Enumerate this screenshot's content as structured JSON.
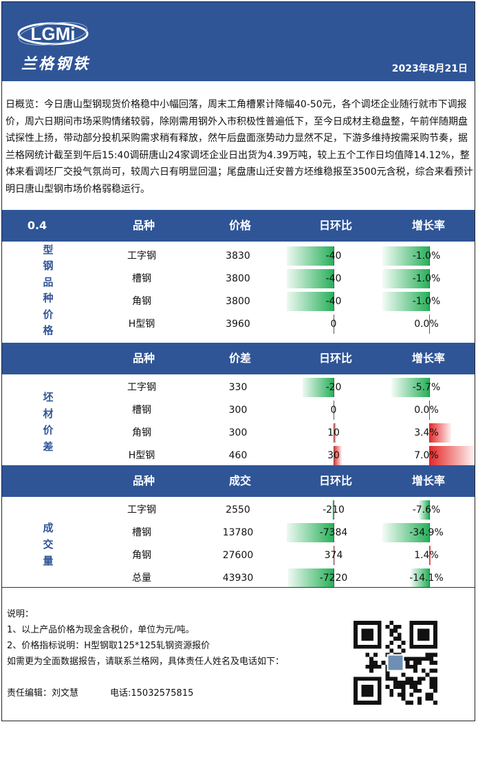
{
  "header": {
    "logo_text": "LGMi",
    "logo_name": "兰格钢铁",
    "date": "2023年8月21日"
  },
  "summary": "日概览：今日唐山型钢现货价格稳中小幅回落，周末工角槽累计降幅40-50元，各个调坯企业随行就市下调报价，周六日期间市场采购情绪较弱，除刚需用钢外入市积极性普遍低下，至今日成材主稳盘整，午前伴随期盘试探性上扬，带动部分投机采购需求稍有释放，然午后盘面涨势动力显然不足，下游多维持按需采购节奏，据兰格网统计截至到午后15:40调研唐山24家调坯企业日出货为4.39万吨，较上五个工作日均值降14.12%，整体来看调坯厂交投气氛尚可，较周六日有明显回温；尾盘唐山迁安普方坯维稳报至3500元含税，综合来看预计明日唐山型钢市场价格弱稳运行。",
  "sections": [
    {
      "band": {
        "c0": "0.4",
        "c1": "品种",
        "c2": "价格",
        "c3": "日环比",
        "c4": "增长率"
      },
      "label": [
        "型",
        "钢",
        "品",
        "种",
        "价",
        "格"
      ],
      "rows": [
        {
          "name": "工字钢",
          "value": "3830",
          "change": "-40",
          "change_num": -40,
          "rate": "-1.0%",
          "rate_num": -1.0
        },
        {
          "name": "槽钢",
          "value": "3800",
          "change": "-40",
          "change_num": -40,
          "rate": "-1.0%",
          "rate_num": -1.0
        },
        {
          "name": "角钢",
          "value": "3800",
          "change": "-40",
          "change_num": -40,
          "rate": "-1.0%",
          "rate_num": -1.0
        },
        {
          "name": "H型钢",
          "value": "3960",
          "change": "0",
          "change_num": 0,
          "rate": "0.0%",
          "rate_num": 0.0
        }
      ]
    },
    {
      "band": {
        "c0": "",
        "c1": "品种",
        "c2": "价差",
        "c3": "日环比",
        "c4": "增长率"
      },
      "label": [
        "坯",
        "材",
        "价",
        "差"
      ],
      "rows": [
        {
          "name": "工字钢",
          "value": "330",
          "change": "-20",
          "change_num": -20,
          "rate": "-5.7%",
          "rate_num": -5.7
        },
        {
          "name": "槽钢",
          "value": "300",
          "change": "0",
          "change_num": 0,
          "rate": "0.0%",
          "rate_num": 0.0
        },
        {
          "name": "角钢",
          "value": "300",
          "change": "10",
          "change_num": 10,
          "rate": "3.4%",
          "rate_num": 3.4
        },
        {
          "name": "H型钢",
          "value": "460",
          "change": "30",
          "change_num": 30,
          "rate": "7.0%",
          "rate_num": 7.0
        }
      ]
    },
    {
      "band": {
        "c0": "",
        "c1": "品种",
        "c2": "成交",
        "c3": "日环比",
        "c4": "增长率"
      },
      "label": [
        "成",
        "交",
        "量"
      ],
      "rows": [
        {
          "name": "工字钢",
          "value": "2550",
          "change": "-210",
          "change_num": -210,
          "rate": "-7.6%",
          "rate_num": -7.6
        },
        {
          "name": "槽钢",
          "value": "13780",
          "change": "-7384",
          "change_num": -7384,
          "rate": "-34.9%",
          "rate_num": -34.9
        },
        {
          "name": "角钢",
          "value": "27600",
          "change": "374",
          "change_num": 374,
          "rate": "1.4%",
          "rate_num": 1.4
        },
        {
          "name": "总量",
          "value": "43930",
          "change": "-7220",
          "change_num": -7220,
          "rate": "-14.1%",
          "rate_num": -14.1
        }
      ]
    }
  ],
  "notes": {
    "title": "说明：",
    "line1": "1、以上产品价格为现金含税价，单位为元/吨。",
    "line2": "2、价格指标说明：H型钢取125*125轧钢资源报价",
    "line3": "如需更为全面数据报告，请联系兰格网，具体责任人姓名及电话如下：",
    "editor": "责任编辑：刘文慧",
    "phone": "电话:15032575815"
  },
  "colors": {
    "brand": "#2f5597",
    "positive": "#e52727",
    "negative": "#28b05a"
  },
  "icons": {
    "qr": "qr-code-icon",
    "logo": "lgmi-logo-icon"
  }
}
